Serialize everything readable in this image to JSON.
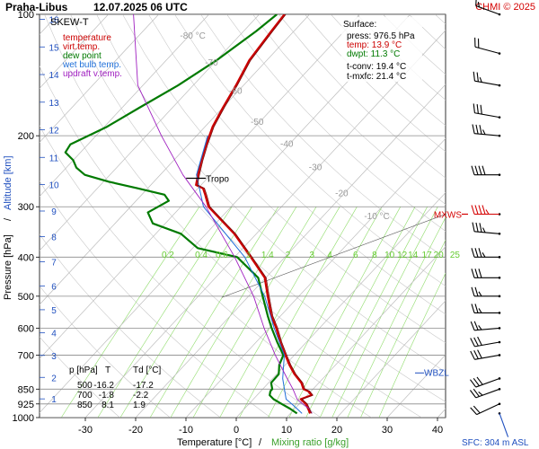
{
  "header": {
    "station": "Praha-Libus",
    "datetime": "12.07.2025 06 UTC",
    "credit": "CHMI © 2025"
  },
  "legend": {
    "title": "SKEW-T",
    "items": [
      {
        "label": "temperature",
        "color": "#cc0000"
      },
      {
        "label": "virt.temp.",
        "color": "#cc0000"
      },
      {
        "label": "dew point",
        "color": "#007a00"
      },
      {
        "label": "wet bulb temp.",
        "color": "#1f6fd9"
      },
      {
        "label": "updraft v.temp.",
        "color": "#a020c0"
      }
    ]
  },
  "surface_info": {
    "title": "Surface:",
    "press": "press: 976.5 hPa",
    "temp": "temp: 13.9 °C",
    "dwpt": "dwpt: 11.3 °C",
    "tconv": "t-conv: 19.4 °C",
    "tmxfc": "t-mxfc: 21.4 °C"
  },
  "annotations": {
    "tropo": "Tropo",
    "mxws": "MXWS",
    "wbzl": "WBZL",
    "sfc": "SFC: 304 m ASL"
  },
  "table": {
    "headers": [
      "p [hPa]",
      "T",
      "Td [°C]"
    ],
    "rows": [
      [
        "500",
        "-16.2",
        "-17.2"
      ],
      [
        "700",
        "-1.8",
        "-2.2"
      ],
      [
        "850",
        "8.1",
        "1.9"
      ]
    ]
  },
  "axes": {
    "x_title": "Temperature [°C]",
    "x_sep": "/",
    "x_title2": "Mixing ratio [g/kg]",
    "y_title": "Pressure [hPa]",
    "y_sep": "/",
    "y_title2": "Altitude [km]"
  },
  "chart_data": {
    "type": "line",
    "title": "Praha-Libus 12.07.2025 06 UTC",
    "xlabel": "Temperature [°C] / Mixing ratio [g/kg]",
    "ylabel": "Pressure [hPa] / Altitude [km]",
    "xlim": [
      -35,
      45
    ],
    "ylim": [
      1000,
      100
    ],
    "y_scale": "log",
    "x_ticks": [
      -30,
      -20,
      -10,
      0,
      10,
      20,
      30,
      40
    ],
    "p_ticks": [
      100,
      200,
      300,
      400,
      500,
      600,
      700,
      850,
      925,
      1000
    ],
    "altitude_ticks_km": [
      1,
      2,
      3,
      4,
      5,
      6,
      7,
      8,
      9,
      10,
      11,
      12,
      13,
      14,
      15,
      16
    ],
    "isotherm_labels": [
      {
        "t": -80,
        "p": 113
      },
      {
        "t": -70,
        "p": 132
      },
      {
        "t": -60,
        "p": 155
      },
      {
        "t": -50,
        "p": 185
      },
      {
        "t": -40,
        "p": 210
      },
      {
        "t": -30,
        "p": 240
      },
      {
        "t": -20,
        "p": 278
      },
      {
        "t": -10,
        "p": 317
      }
    ],
    "mixing_ratio_labels": [
      "0.2",
      "0.4",
      "0.6",
      "1",
      "1.4",
      "2",
      "3",
      "4",
      "6",
      "8",
      "10",
      "12",
      "14",
      "17",
      "20",
      "25"
    ],
    "mixing_ratio_values": [
      0.2,
      0.4,
      0.6,
      1,
      1.4,
      2,
      3,
      4,
      6,
      8,
      10,
      12,
      14,
      17,
      20,
      25
    ],
    "series": [
      {
        "name": "temperature",
        "color": "#cc0000",
        "p": [
          976.5,
          950,
          925,
          900,
          880,
          860,
          850,
          820,
          780,
          740,
          700,
          650,
          600,
          560,
          500,
          450,
          400,
          350,
          320,
          300,
          280,
          270,
          265,
          250,
          230,
          210,
          190,
          170,
          150,
          130,
          110,
          100
        ],
        "t": [
          13.9,
          12.6,
          11.3,
          9.4,
          10.8,
          9.4,
          8.1,
          6.5,
          3.5,
          0.8,
          -1.8,
          -5.2,
          -8.6,
          -11.8,
          -16.2,
          -20.2,
          -26.8,
          -34.4,
          -40.3,
          -44.5,
          -47.4,
          -49.0,
          -51.0,
          -52.5,
          -54.5,
          -56.5,
          -58.5,
          -60.0,
          -61.5,
          -63.5,
          -64.5,
          -65.0
        ]
      },
      {
        "name": "dew point",
        "color": "#007a00",
        "p": [
          976.5,
          950,
          925,
          900,
          880,
          860,
          850,
          820,
          780,
          740,
          700,
          650,
          600,
          560,
          500,
          450,
          400,
          380,
          350,
          330,
          310,
          300,
          290,
          280,
          270,
          260,
          250,
          240,
          230,
          220,
          210,
          190,
          170,
          150,
          130,
          110,
          100
        ],
        "t": [
          11.3,
          9.0,
          6.5,
          4.0,
          2.5,
          1.9,
          1.9,
          0.5,
          0.4,
          -1.2,
          -2.2,
          -5.8,
          -9.5,
          -12.5,
          -17.2,
          -21.5,
          -29.5,
          -39.0,
          -45.0,
          -52.5,
          -55.5,
          -54.5,
          -53.5,
          -55.5,
          -62.0,
          -69.0,
          -75.0,
          -78.0,
          -80.0,
          -83.0,
          -83.5,
          -79.5,
          -76.5,
          -73.0,
          -70.0,
          -67.5,
          -66.5
        ]
      },
      {
        "name": "wet bulb temp.",
        "color": "#1f6fd9",
        "p": [
          976.5,
          950,
          925,
          900,
          850,
          800,
          700,
          600,
          500,
          400,
          300,
          250,
          200
        ],
        "t": [
          12.3,
          10.4,
          8.5,
          6.5,
          4.3,
          2.0,
          -2.0,
          -9.0,
          -16.8,
          -28.0,
          -45.5,
          -52.8,
          -57.8
        ]
      },
      {
        "name": "updraft v.temp.",
        "color": "#a020c0",
        "p": [
          976.5,
          950,
          925,
          900,
          850,
          800,
          700,
          600,
          500,
          400,
          300,
          250,
          200,
          150,
          100
        ],
        "t": [
          14.3,
          12.8,
          10.7,
          8.7,
          6.0,
          2.9,
          -3.8,
          -11.0,
          -19.0,
          -30.0,
          -45.0,
          -55.5,
          -67.0,
          -81.0,
          -95.0
        ]
      }
    ],
    "tropopause_p": 255,
    "max_wind_p": 313,
    "wbzl_p": 775,
    "wind_barbs": [
      {
        "p": 976.5,
        "dir": 160,
        "kt": 2
      },
      {
        "p": 925,
        "dir": 245,
        "kt": 20
      },
      {
        "p": 850,
        "dir": 250,
        "kt": 25
      },
      {
        "p": 800,
        "dir": 250,
        "kt": 30
      },
      {
        "p": 700,
        "dir": 260,
        "kt": 30
      },
      {
        "p": 650,
        "dir": 260,
        "kt": 30
      },
      {
        "p": 600,
        "dir": 265,
        "kt": 25
      },
      {
        "p": 550,
        "dir": 270,
        "kt": 25
      },
      {
        "p": 500,
        "dir": 270,
        "kt": 25
      },
      {
        "p": 450,
        "dir": 270,
        "kt": 30
      },
      {
        "p": 400,
        "dir": 270,
        "kt": 35
      },
      {
        "p": 350,
        "dir": 275,
        "kt": 35
      },
      {
        "p": 313,
        "dir": 270,
        "kt": 45
      },
      {
        "p": 250,
        "dir": 270,
        "kt": 40
      },
      {
        "p": 200,
        "dir": 275,
        "kt": 35
      },
      {
        "p": 180,
        "dir": 280,
        "kt": 30
      },
      {
        "p": 150,
        "dir": 280,
        "kt": 25
      },
      {
        "p": 125,
        "dir": 285,
        "kt": 20
      },
      {
        "p": 100,
        "dir": 290,
        "kt": 15
      }
    ]
  }
}
